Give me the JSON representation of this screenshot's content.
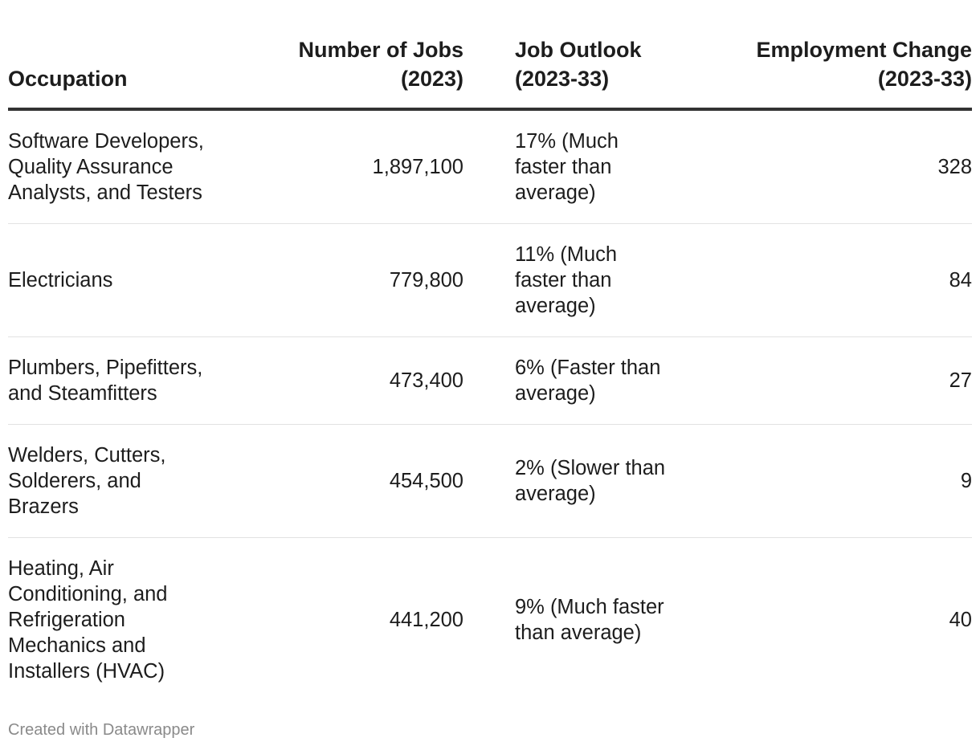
{
  "chart_data": {
    "type": "table",
    "columns": [
      "Occupation",
      "Number of Jobs (2023)",
      "Job Outlook (2023-33)",
      "Employment Change (2023-33)"
    ],
    "header_lines": [
      [
        "Occupation"
      ],
      [
        "Number of Jobs",
        "(2023)"
      ],
      [
        "Job Outlook",
        "(2023-33)"
      ],
      [
        "Employment Change",
        "(2023-33)"
      ]
    ],
    "rows": [
      {
        "occupation_lines": [
          "Software Developers,",
          "Quality Assurance",
          "Analysts, and Testers"
        ],
        "jobs": "1,897,100",
        "outlook_lines": [
          "17% (Much",
          "faster than",
          "average)"
        ],
        "change": "328"
      },
      {
        "occupation_lines": [
          "Electricians"
        ],
        "jobs": "779,800",
        "outlook_lines": [
          "11% (Much",
          "faster than",
          "average)"
        ],
        "change": "84"
      },
      {
        "occupation_lines": [
          "Plumbers, Pipefitters,",
          "and Steamfitters"
        ],
        "jobs": "473,400",
        "outlook_lines": [
          "6% (Faster than",
          "average)"
        ],
        "change": "27"
      },
      {
        "occupation_lines": [
          "Welders, Cutters,",
          "Solderers, and",
          "Brazers"
        ],
        "jobs": "454,500",
        "outlook_lines": [
          "2% (Slower than",
          "average)"
        ],
        "change": "9"
      },
      {
        "occupation_lines": [
          "Heating, Air",
          "Conditioning, and",
          "Refrigeration",
          "Mechanics and",
          "Installers (HVAC)"
        ],
        "jobs": "441,200",
        "outlook_lines": [
          "9% (Much faster",
          "than average)"
        ],
        "change": "40"
      }
    ]
  },
  "footer": {
    "credit": "Created with Datawrapper"
  }
}
